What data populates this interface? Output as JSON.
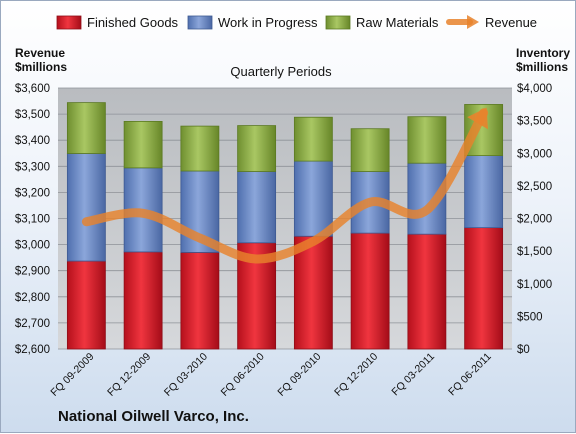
{
  "chart_data": {
    "type": "bar",
    "subtitle": "Quarterly Periods",
    "company": "National Oilwell Varco, Inc.",
    "left_axis": {
      "label_line1": "Revenue",
      "label_line2": "$millions",
      "range": [
        2600,
        3600
      ],
      "ticks": [
        "$2,600",
        "$2,700",
        "$2,800",
        "$2,900",
        "$3,000",
        "$3,100",
        "$3,200",
        "$3,300",
        "$3,400",
        "$3,500",
        "$3,600"
      ]
    },
    "right_axis": {
      "label_line1": "Inventory",
      "label_line2": "$millions",
      "range": [
        0,
        4000
      ],
      "ticks": [
        "$0",
        "$500",
        "$1,000",
        "$1,500",
        "$2,000",
        "$2,500",
        "$3,000",
        "$3,500",
        "$4,000"
      ]
    },
    "categories": [
      "FQ 09-2009",
      "FQ 12-2009",
      "FQ 03-2010",
      "FQ 06-2010",
      "FQ 09-2010",
      "FQ 12-2010",
      "FQ 03-2011",
      "FQ 06-2011"
    ],
    "stack_scale": "left",
    "series": [
      {
        "name": "Finished Goods",
        "kind": "bar",
        "color": "#e0202e",
        "values": [
          2937,
          2972,
          2970,
          3007,
          3032,
          3044,
          3040,
          3065
        ]
      },
      {
        "name": "Work in Progress",
        "kind": "bar",
        "color": "#6f8fc9",
        "values": [
          412,
          322,
          312,
          273,
          288,
          236,
          272,
          276
        ]
      },
      {
        "name": "Raw Materials",
        "kind": "bar",
        "color": "#8fb04a",
        "values": [
          195,
          178,
          172,
          176,
          168,
          164,
          178,
          196
        ]
      },
      {
        "name": "Revenue",
        "kind": "line",
        "axis": "right",
        "color": "#e8832c",
        "values": [
          1950,
          2080,
          1700,
          1380,
          1650,
          2250,
          2130,
          3620
        ]
      }
    ],
    "legend_position": "top",
    "grid": true
  }
}
